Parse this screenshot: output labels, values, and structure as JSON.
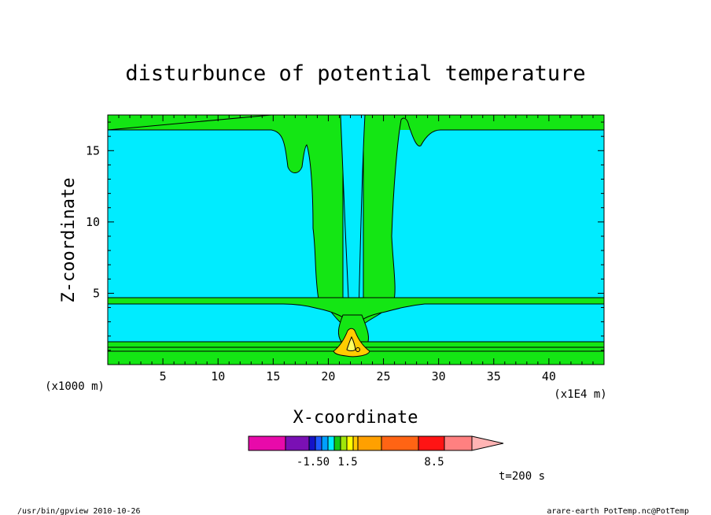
{
  "chart_data": {
    "type": "heatmap",
    "title": "disturbunce of potential temperature",
    "xlabel": "X-coordinate",
    "ylabel": "Z-coordinate",
    "x_unit": "(x1E4 m)",
    "y_unit": "(x1000 m)",
    "xlim": [
      0,
      45
    ],
    "ylim": [
      0,
      17.5
    ],
    "x_ticks": [
      "5",
      "10",
      "15",
      "20",
      "25",
      "30",
      "35",
      "40"
    ],
    "y_ticks": [
      "5",
      "10",
      "15"
    ],
    "colorbar": {
      "colors": [
        "#e80aaa",
        "#7a10b4",
        "#1414c8",
        "#1e5aff",
        "#00a0ff",
        "#00ecff",
        "#14c814",
        "#a0e60a",
        "#ffff00",
        "#ffc800",
        "#ffa000",
        "#ff6414",
        "#ff1414",
        "#ff8080",
        "#ffb4b4"
      ],
      "labels": [
        "-1.50",
        "1.5",
        "8.5"
      ]
    },
    "fill_colors": {
      "background": "#00ecff",
      "band": "#14e614",
      "core": "#ffcc00",
      "peak": "#ffff60"
    }
  },
  "annotation": "t=200 s",
  "footer_left": "/usr/bin/gpview   2010-10-26",
  "footer_right": "arare-earth_PotTemp.nc@PotTemp"
}
